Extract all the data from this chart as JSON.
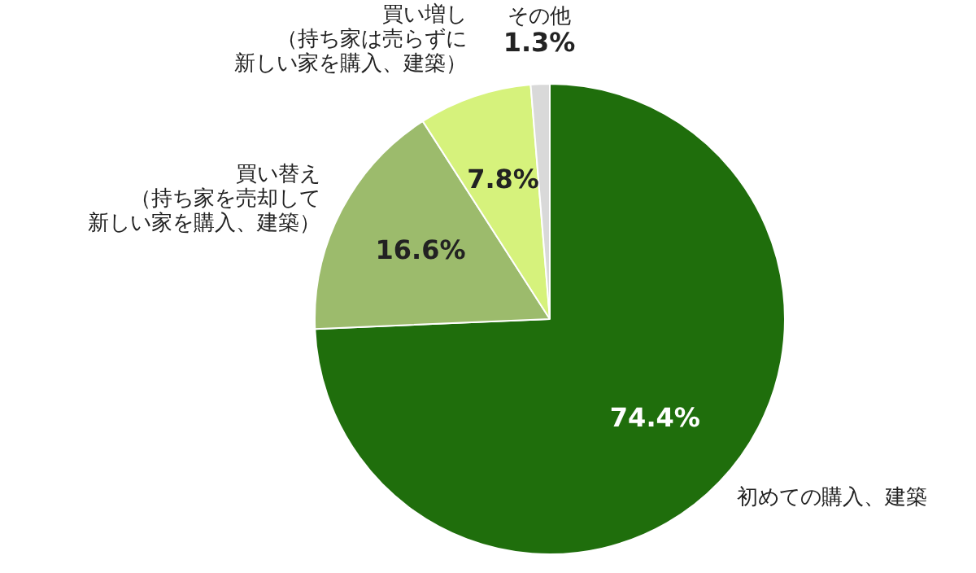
{
  "chart_data": {
    "type": "pie",
    "categories": [
      "初めての購入、建築",
      "買い替え（持ち家を売却して新しい家を購入、建築）",
      "買い増し（持ち家は売らずに新しい家を購入、建築）",
      "その他"
    ],
    "values": [
      74.4,
      16.6,
      7.8,
      1.3
    ],
    "colors": [
      "#1f6e0c",
      "#9cbb6c",
      "#d6f27c",
      "#d9d9d9"
    ],
    "value_labels": [
      "74.4%",
      "16.6%",
      "7.8%",
      "1.3%"
    ],
    "legend": false
  }
}
